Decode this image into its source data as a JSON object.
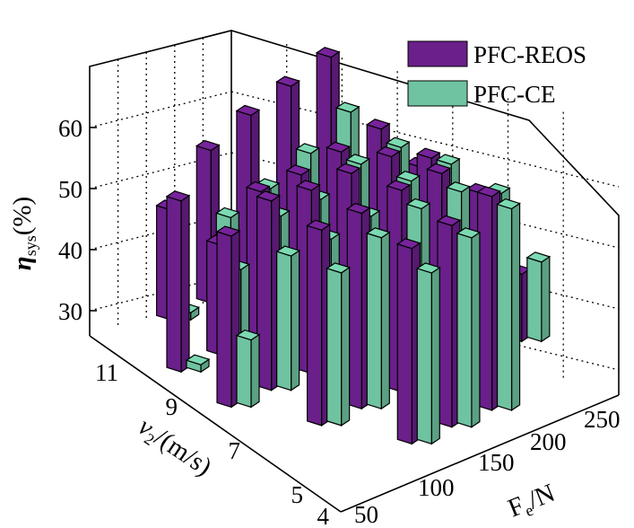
{
  "chart_data": {
    "type": "bar3d",
    "title": "",
    "xlabel_parts": {
      "base": "F",
      "sub": "e",
      "rest": "/N"
    },
    "ylabel_parts": {
      "base": "v",
      "sub": "2",
      "rest": "/(m/s)"
    },
    "zlabel_parts": {
      "base": "η",
      "sub": "sys",
      "rest": "(%)"
    },
    "x_ticks": [
      "50",
      "100",
      "150",
      "200",
      "250"
    ],
    "y_ticks": [
      "4",
      "5",
      "7",
      "9",
      "11"
    ],
    "z_ticks": [
      "30",
      "40",
      "50",
      "60"
    ],
    "zlim": [
      25,
      62
    ],
    "legend_position": "top-right",
    "series": [
      {
        "name": "PFC-REOS",
        "color": "#6a1f8a",
        "values": [
          [
            null,
            43,
            50,
            53,
            55,
            57,
            null
          ],
          [
            53,
            43,
            49,
            49,
            50,
            51,
            42
          ],
          [
            53,
            56,
            55,
            55,
            55,
            52,
            null
          ],
          [
            null,
            57,
            57,
            58,
            58,
            52,
            36
          ],
          [
            null,
            null,
            57,
            58,
            60,
            null,
            null
          ]
        ]
      },
      {
        "name": "PFC-CE",
        "color": "#6fc3a0",
        "values": [
          [
            null,
            26,
            39,
            41,
            44,
            48,
            null
          ],
          [
            26,
            39,
            45,
            45,
            48,
            48,
            40
          ],
          [
            36,
            47,
            47,
            48,
            51,
            51,
            null
          ],
          [
            null,
            50,
            53,
            55,
            55,
            52,
            38
          ],
          [
            null,
            null,
            53,
            56,
            58,
            null,
            null
          ]
        ]
      }
    ]
  }
}
